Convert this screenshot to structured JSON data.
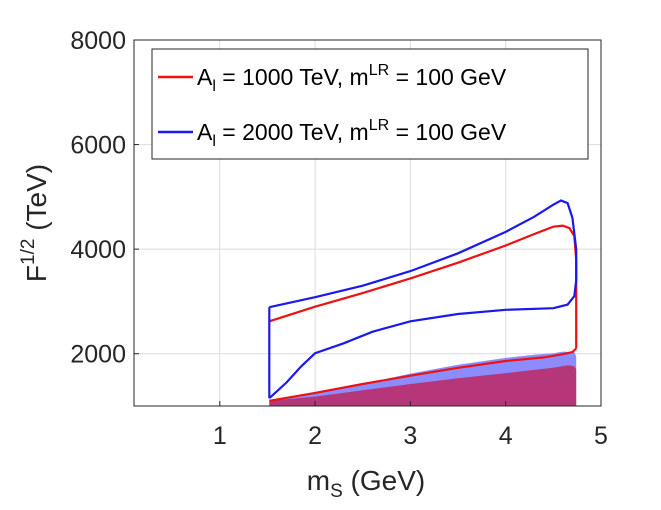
{
  "chart_data": {
    "type": "line",
    "xlabel_main": "m",
    "xlabel_sub": "S",
    "xlabel_unit": " (GeV)",
    "ylabel_main": "F",
    "ylabel_sup": "1/2",
    "ylabel_unit": " (TeV)",
    "xlim": [
      0.1,
      5
    ],
    "ylim": [
      1000,
      8000
    ],
    "xticks": [
      1,
      2,
      3,
      4,
      5
    ],
    "yticks": [
      2000,
      4000,
      6000,
      8000
    ],
    "xtick_labels": [
      "1",
      "2",
      "3",
      "4",
      "5"
    ],
    "ytick_labels": [
      "2000",
      "4000",
      "6000",
      "8000"
    ],
    "grid": true,
    "legend_position": "top-right",
    "colors": {
      "red": "#ee1111",
      "blue": "#1a1aee",
      "fill_blue": "#8080ff",
      "fill_magenta": "#b8306e",
      "grid": "#dcdcdc",
      "axis": "#262626"
    },
    "legend": [
      {
        "series": "red",
        "a": "A",
        "a_sub": "l",
        "a_value": " = 1000 TeV, m",
        "m_sup": "LR",
        "m_value": " = 100 GeV"
      },
      {
        "series": "blue",
        "a": "A",
        "a_sub": "l",
        "a_value": " = 2000 TeV, m",
        "m_sup": "LR",
        "m_value": " = 100 GeV"
      }
    ],
    "series": [
      {
        "name": "A_l = 1000 TeV, m^LR = 100 GeV",
        "color": "red",
        "upper": [
          [
            1.52,
            2620
          ],
          [
            2.0,
            2900
          ],
          [
            2.5,
            3160
          ],
          [
            3.0,
            3440
          ],
          [
            3.5,
            3740
          ],
          [
            4.0,
            4070
          ],
          [
            4.3,
            4290
          ],
          [
            4.5,
            4430
          ],
          [
            4.6,
            4450
          ],
          [
            4.67,
            4400
          ],
          [
            4.72,
            4250
          ],
          [
            4.74,
            3800
          ]
        ],
        "lower": [
          [
            1.52,
            1100
          ],
          [
            2.0,
            1250
          ],
          [
            2.5,
            1420
          ],
          [
            3.0,
            1580
          ],
          [
            3.5,
            1730
          ],
          [
            4.0,
            1860
          ],
          [
            4.4,
            1930
          ],
          [
            4.6,
            1990
          ],
          [
            4.7,
            2030
          ],
          [
            4.74,
            2100
          ]
        ],
        "right_edge": [
          [
            4.74,
            3800
          ],
          [
            4.74,
            2100
          ]
        ]
      },
      {
        "name": "A_l = 2000 TeV, m^LR = 100 GeV",
        "color": "blue",
        "upper": [
          [
            1.52,
            2890
          ],
          [
            2.0,
            3080
          ],
          [
            2.5,
            3300
          ],
          [
            3.0,
            3580
          ],
          [
            3.5,
            3920
          ],
          [
            4.0,
            4330
          ],
          [
            4.3,
            4620
          ],
          [
            4.5,
            4850
          ],
          [
            4.58,
            4930
          ],
          [
            4.65,
            4880
          ],
          [
            4.7,
            4600
          ],
          [
            4.74,
            4000
          ]
        ],
        "inner": [
          [
            1.52,
            1150
          ],
          [
            1.7,
            1450
          ],
          [
            1.85,
            1750
          ],
          [
            2.0,
            2010
          ],
          [
            2.3,
            2200
          ],
          [
            2.6,
            2420
          ],
          [
            3.0,
            2620
          ],
          [
            3.5,
            2760
          ],
          [
            4.0,
            2840
          ],
          [
            4.5,
            2870
          ],
          [
            4.65,
            2940
          ],
          [
            4.72,
            3100
          ],
          [
            4.74,
            3400
          ]
        ],
        "right_edge": [
          [
            4.74,
            4000
          ],
          [
            4.74,
            3400
          ]
        ],
        "left_edge": [
          [
            1.52,
            2890
          ],
          [
            1.52,
            1150
          ]
        ]
      }
    ],
    "fills": [
      {
        "name": "blue excluded region",
        "color": "fill_blue",
        "top": [
          [
            1.52,
            1100
          ],
          [
            2.0,
            1250
          ],
          [
            2.5,
            1420
          ],
          [
            3.0,
            1620
          ],
          [
            3.5,
            1790
          ],
          [
            4.0,
            1920
          ],
          [
            4.3,
            1980
          ],
          [
            4.5,
            2010
          ],
          [
            4.6,
            2040
          ],
          [
            4.72,
            2030
          ],
          [
            4.74,
            1950
          ]
        ]
      },
      {
        "name": "magenta excluded region",
        "color": "fill_magenta",
        "top": [
          [
            1.52,
            1100
          ],
          [
            2.0,
            1180
          ],
          [
            2.5,
            1300
          ],
          [
            3.0,
            1420
          ],
          [
            3.5,
            1530
          ],
          [
            4.0,
            1630
          ],
          [
            4.3,
            1690
          ],
          [
            4.5,
            1730
          ],
          [
            4.65,
            1780
          ],
          [
            4.72,
            1760
          ],
          [
            4.74,
            1700
          ]
        ]
      }
    ]
  }
}
